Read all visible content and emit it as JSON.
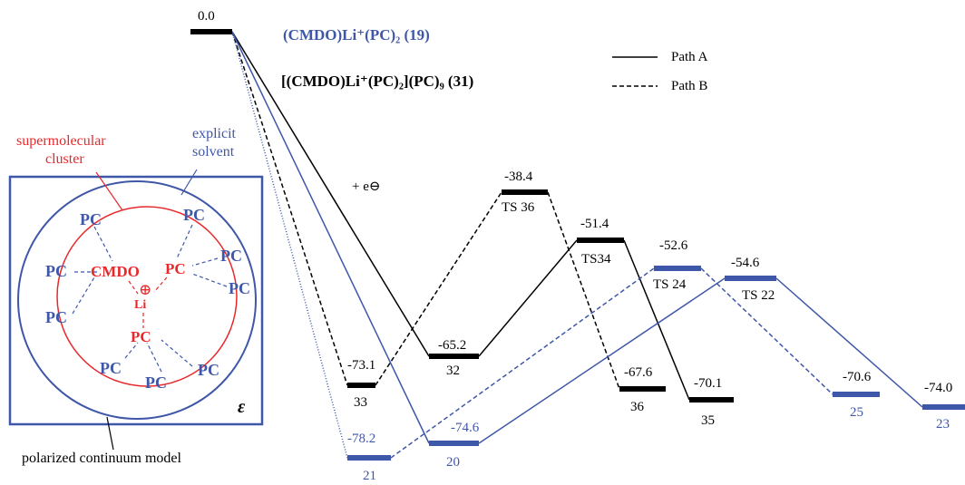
{
  "legend": {
    "title_blue": "(CMDO)Li⁺(PC)₂ (19)",
    "title_black": "[(CMDO)Li⁺(PC)₂](PC)₉ (31)",
    "path_a": "Path A",
    "path_b": "Path B"
  },
  "electron_label": "+ e⊖",
  "levels": {
    "start": "0.0",
    "l33": "-73.1",
    "n33": "33",
    "l21": "-78.2",
    "n21": "21",
    "l32": "-65.2",
    "n32": "32",
    "l20": "-74.6",
    "n20": "20",
    "ts36v": "-38.4",
    "ts36": "TS 36",
    "ts34v": "-51.4",
    "ts34": "TS34",
    "ts24v": "-52.6",
    "ts24": "TS 24",
    "ts22v": "-54.6",
    "ts22": "TS 22",
    "l36": "-67.6",
    "n36": "36",
    "l35": "-70.1",
    "n35": "35",
    "l25": "-70.6",
    "n25": "25",
    "l23": "-74.0",
    "n23": "23"
  },
  "model": {
    "supermolecular_cluster": [
      "supermolecular",
      "cluster"
    ],
    "explicit_solvent": [
      "explicit",
      "solvent"
    ],
    "polarized_continuum": "polarized continuum model",
    "epsilon": "ε",
    "cmdo": "CMDO",
    "li": "Li",
    "plus": "⊕",
    "pc": "PC"
  },
  "colors": {
    "black_path": "#000000",
    "blue_path": "#3f57a8",
    "red_cluster": "#e8282b"
  }
}
